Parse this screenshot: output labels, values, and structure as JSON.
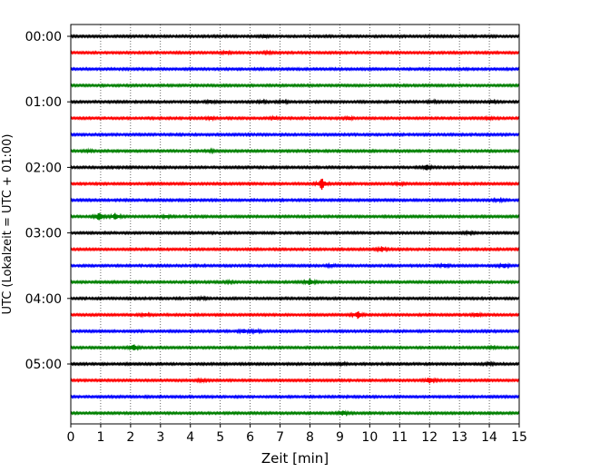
{
  "chart_data": {
    "type": "line",
    "title": "",
    "xlabel": "Zeit  [min]",
    "ylabel": "UTC (Lokalzeit = UTC + 01:00)",
    "xlim": [
      0,
      15
    ],
    "x_ticks": [
      "0",
      "1",
      "2",
      "3",
      "4",
      "5",
      "6",
      "7",
      "8",
      "9",
      "10",
      "11",
      "12",
      "13",
      "14",
      "15"
    ],
    "y_ticks": [
      "00:00",
      "01:00",
      "02:00",
      "03:00",
      "04:00",
      "05:00"
    ],
    "grid": "vertical dotted",
    "trace_minutes": 15,
    "traces_per_hour": 4,
    "trace_colors": [
      "#000000",
      "#ff0000",
      "#0000ff",
      "#008000"
    ],
    "series": [
      {
        "start": "00:00",
        "events": [
          [
            6.5,
            0.15
          ]
        ]
      },
      {
        "start": "00:15",
        "events": [
          [
            5.2,
            0.2
          ],
          [
            6.6,
            0.15
          ]
        ]
      },
      {
        "start": "00:30",
        "events": []
      },
      {
        "start": "00:45",
        "events": []
      },
      {
        "start": "01:00",
        "events": [
          [
            4.7,
            0.25
          ],
          [
            6.4,
            0.2
          ],
          [
            7.1,
            0.25
          ],
          [
            12.1,
            0.2
          ],
          [
            14.1,
            0.2
          ]
        ]
      },
      {
        "start": "01:15",
        "events": [
          [
            4.7,
            0.2
          ],
          [
            6.8,
            0.2
          ],
          [
            9.3,
            0.25
          ],
          [
            14.0,
            0.2
          ]
        ]
      },
      {
        "start": "01:30",
        "events": []
      },
      {
        "start": "01:45",
        "events": [
          [
            0.6,
            0.15
          ],
          [
            4.7,
            0.15
          ]
        ]
      },
      {
        "start": "02:00",
        "events": [
          [
            11.9,
            0.45
          ]
        ]
      },
      {
        "start": "02:15",
        "events": [
          [
            8.4,
            1.0
          ],
          [
            11.0,
            0.2
          ]
        ]
      },
      {
        "start": "02:30",
        "events": [
          [
            14.3,
            0.2
          ]
        ]
      },
      {
        "start": "02:45",
        "events": [
          [
            0.95,
            0.7
          ],
          [
            1.5,
            0.55
          ],
          [
            3.2,
            0.2
          ]
        ]
      },
      {
        "start": "03:00",
        "events": [
          [
            13.3,
            0.2
          ]
        ]
      },
      {
        "start": "03:15",
        "events": [
          [
            10.4,
            0.4
          ]
        ]
      },
      {
        "start": "03:30",
        "events": [
          [
            8.7,
            0.2
          ],
          [
            12.5,
            0.3
          ],
          [
            14.5,
            0.4
          ]
        ]
      },
      {
        "start": "03:45",
        "events": [
          [
            8.0,
            0.5
          ],
          [
            5.3,
            0.15
          ]
        ]
      },
      {
        "start": "04:00",
        "events": [
          [
            4.4,
            0.15
          ]
        ]
      },
      {
        "start": "04:15",
        "events": [
          [
            9.6,
            0.6
          ],
          [
            13.6,
            0.3
          ],
          [
            2.5,
            0.2
          ]
        ]
      },
      {
        "start": "04:30",
        "events": [
          [
            5.8,
            0.3
          ],
          [
            6.2,
            0.25
          ]
        ]
      },
      {
        "start": "04:45",
        "events": [
          [
            2.1,
            0.5
          ],
          [
            14.1,
            0.15
          ]
        ]
      },
      {
        "start": "05:00",
        "events": [
          [
            9.1,
            0.2
          ],
          [
            14.0,
            0.2
          ]
        ]
      },
      {
        "start": "05:15",
        "events": [
          [
            12.0,
            0.55
          ],
          [
            4.4,
            0.2
          ]
        ]
      },
      {
        "start": "05:30",
        "events": []
      },
      {
        "start": "05:45",
        "events": [
          [
            9.1,
            0.35
          ]
        ]
      }
    ]
  }
}
